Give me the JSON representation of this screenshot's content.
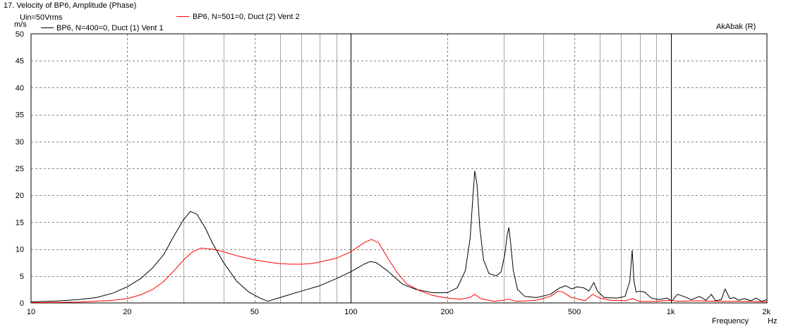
{
  "header": {
    "title": "17. Velocity of BP6, Amplitude (Phase)",
    "drive_label": "Uin=50Vrms",
    "brand": "AkAbak (R)"
  },
  "legend": [
    {
      "label": "BP6, N=400=0, Duct (1) Vent 1",
      "color": "#000000"
    },
    {
      "label": "BP6, N=501=0, Duct (2) Vent 2",
      "color": "#ff0000"
    }
  ],
  "chart_data": {
    "type": "line",
    "title": "17. Velocity of BP6, Amplitude (Phase)",
    "xlabel": "Frequency",
    "ylabel": "m/s",
    "x_unit_label": "Hz",
    "x_scale": "log",
    "xlim": [
      10,
      2000
    ],
    "ylim": [
      0,
      50
    ],
    "grid": true,
    "legend_position": "top-left",
    "x_tick_labels": [
      {
        "value": 10,
        "label": "10"
      },
      {
        "value": 20,
        "label": "20"
      },
      {
        "value": 50,
        "label": "50"
      },
      {
        "value": 100,
        "label": "100"
      },
      {
        "value": 200,
        "label": "200"
      },
      {
        "value": 500,
        "label": "500"
      },
      {
        "value": 1000,
        "label": "1k"
      },
      {
        "value": 2000,
        "label": "2k"
      }
    ],
    "y_tick_labels": [
      {
        "value": 0,
        "label": "0"
      },
      {
        "value": 5,
        "label": "5"
      },
      {
        "value": 10,
        "label": "10"
      },
      {
        "value": 15,
        "label": "15"
      },
      {
        "value": 20,
        "label": "20"
      },
      {
        "value": 25,
        "label": "25"
      },
      {
        "value": 30,
        "label": "30"
      },
      {
        "value": 35,
        "label": "35"
      },
      {
        "value": 40,
        "label": "40"
      },
      {
        "value": 45,
        "label": "45"
      },
      {
        "value": 50,
        "label": "50"
      }
    ],
    "series": [
      {
        "name": "BP6, N=400=0, Duct (1) Vent 1",
        "color": "#000000",
        "points": [
          [
            10,
            0.2
          ],
          [
            12,
            0.35
          ],
          [
            14,
            0.6
          ],
          [
            16,
            1.0
          ],
          [
            18,
            1.8
          ],
          [
            20,
            3.0
          ],
          [
            22,
            4.5
          ],
          [
            24,
            6.5
          ],
          [
            26,
            9.0
          ],
          [
            28,
            12.5
          ],
          [
            30,
            15.5
          ],
          [
            31.5,
            17.0
          ],
          [
            33,
            16.5
          ],
          [
            35,
            14.0
          ],
          [
            37,
            11.0
          ],
          [
            40,
            7.5
          ],
          [
            44,
            4.0
          ],
          [
            48,
            2.0
          ],
          [
            52,
            0.9
          ],
          [
            55,
            0.3
          ],
          [
            60,
            1.0
          ],
          [
            70,
            2.2
          ],
          [
            80,
            3.2
          ],
          [
            90,
            4.5
          ],
          [
            100,
            5.8
          ],
          [
            110,
            7.2
          ],
          [
            115,
            7.7
          ],
          [
            120,
            7.5
          ],
          [
            130,
            6.0
          ],
          [
            145,
            3.5
          ],
          [
            160,
            2.5
          ],
          [
            180,
            1.9
          ],
          [
            200,
            1.9
          ],
          [
            215,
            2.8
          ],
          [
            228,
            6.0
          ],
          [
            236,
            12.0
          ],
          [
            241,
            20.0
          ],
          [
            244,
            24.5
          ],
          [
            248,
            22.0
          ],
          [
            253,
            14.0
          ],
          [
            260,
            8.0
          ],
          [
            270,
            5.5
          ],
          [
            285,
            5.0
          ],
          [
            295,
            5.8
          ],
          [
            303,
            9.0
          ],
          [
            308,
            12.5
          ],
          [
            312,
            14.0
          ],
          [
            316,
            11.0
          ],
          [
            322,
            6.0
          ],
          [
            332,
            2.5
          ],
          [
            350,
            1.2
          ],
          [
            380,
            1.0
          ],
          [
            420,
            1.6
          ],
          [
            450,
            2.8
          ],
          [
            470,
            3.2
          ],
          [
            490,
            2.6
          ],
          [
            510,
            3.0
          ],
          [
            535,
            2.8
          ],
          [
            555,
            2.2
          ],
          [
            575,
            3.8
          ],
          [
            590,
            2.2
          ],
          [
            620,
            1.0
          ],
          [
            680,
            0.9
          ],
          [
            720,
            1.2
          ],
          [
            745,
            4.0
          ],
          [
            758,
            9.8
          ],
          [
            768,
            4.0
          ],
          [
            780,
            2.0
          ],
          [
            800,
            2.2
          ],
          [
            830,
            2.0
          ],
          [
            870,
            0.9
          ],
          [
            920,
            0.6
          ],
          [
            970,
            0.9
          ],
          [
            1010,
            0.4
          ],
          [
            1050,
            1.6
          ],
          [
            1100,
            1.2
          ],
          [
            1160,
            0.6
          ],
          [
            1230,
            1.2
          ],
          [
            1290,
            0.5
          ],
          [
            1340,
            1.6
          ],
          [
            1380,
            0.4
          ],
          [
            1440,
            0.6
          ],
          [
            1480,
            2.6
          ],
          [
            1530,
            0.8
          ],
          [
            1580,
            1.0
          ],
          [
            1630,
            0.5
          ],
          [
            1700,
            0.8
          ],
          [
            1780,
            0.4
          ],
          [
            1850,
            0.9
          ],
          [
            1920,
            0.3
          ],
          [
            2000,
            0.6
          ]
        ]
      },
      {
        "name": "BP6, N=501=0, Duct (2) Vent 2",
        "color": "#ff0000",
        "points": [
          [
            10,
            0.05
          ],
          [
            14,
            0.15
          ],
          [
            18,
            0.5
          ],
          [
            20,
            0.8
          ],
          [
            22,
            1.5
          ],
          [
            24,
            2.5
          ],
          [
            26,
            4.0
          ],
          [
            28,
            6.0
          ],
          [
            30,
            8.0
          ],
          [
            32,
            9.5
          ],
          [
            34,
            10.2
          ],
          [
            37,
            10.0
          ],
          [
            40,
            9.5
          ],
          [
            45,
            8.6
          ],
          [
            50,
            8.0
          ],
          [
            55,
            7.6
          ],
          [
            60,
            7.3
          ],
          [
            65,
            7.2
          ],
          [
            70,
            7.2
          ],
          [
            75,
            7.3
          ],
          [
            80,
            7.6
          ],
          [
            90,
            8.3
          ],
          [
            100,
            9.5
          ],
          [
            110,
            11.2
          ],
          [
            116,
            11.8
          ],
          [
            122,
            11.2
          ],
          [
            130,
            8.5
          ],
          [
            140,
            5.5
          ],
          [
            150,
            3.5
          ],
          [
            165,
            2.2
          ],
          [
            180,
            1.4
          ],
          [
            200,
            0.9
          ],
          [
            220,
            0.7
          ],
          [
            235,
            1.0
          ],
          [
            244,
            1.6
          ],
          [
            255,
            0.8
          ],
          [
            280,
            0.3
          ],
          [
            300,
            0.5
          ],
          [
            310,
            0.7
          ],
          [
            330,
            0.3
          ],
          [
            380,
            0.5
          ],
          [
            420,
            1.2
          ],
          [
            445,
            2.2
          ],
          [
            460,
            2.0
          ],
          [
            490,
            1.0
          ],
          [
            540,
            0.4
          ],
          [
            570,
            1.6
          ],
          [
            600,
            0.9
          ],
          [
            650,
            0.5
          ],
          [
            720,
            0.4
          ],
          [
            760,
            0.8
          ],
          [
            800,
            0.3
          ],
          [
            900,
            0.3
          ],
          [
            1000,
            0.5
          ],
          [
            1050,
            0.3
          ],
          [
            1200,
            0.4
          ],
          [
            1400,
            0.3
          ],
          [
            1600,
            0.3
          ],
          [
            1800,
            0.3
          ],
          [
            2000,
            0.2
          ]
        ]
      }
    ]
  }
}
